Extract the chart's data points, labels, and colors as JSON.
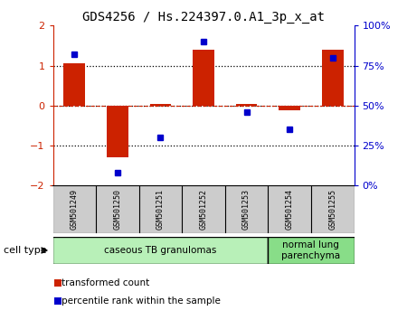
{
  "title": "GDS4256 / Hs.224397.0.A1_3p_x_at",
  "samples": [
    "GSM501249",
    "GSM501250",
    "GSM501251",
    "GSM501252",
    "GSM501253",
    "GSM501254",
    "GSM501255"
  ],
  "transformed_count": [
    1.05,
    -1.3,
    0.05,
    1.4,
    0.05,
    -0.12,
    1.4
  ],
  "percentile_rank": [
    82,
    8,
    30,
    90,
    46,
    35,
    80
  ],
  "bar_color": "#cc2200",
  "dot_color": "#0000cc",
  "ylim_left": [
    -2,
    2
  ],
  "ylim_right": [
    0,
    100
  ],
  "yticks_left": [
    -2,
    -1,
    0,
    1,
    2
  ],
  "yticks_right": [
    0,
    25,
    50,
    75,
    100
  ],
  "ytick_labels_right": [
    "0%",
    "25%",
    "50%",
    "75%",
    "100%"
  ],
  "hlines_dotted": [
    -1,
    0,
    1
  ],
  "cell_type_groups": [
    {
      "label": "caseous TB granulomas",
      "indices": [
        0,
        1,
        2,
        3,
        4
      ],
      "color": "#b8f0b8"
    },
    {
      "label": "normal lung\nparenchyma",
      "indices": [
        5,
        6
      ],
      "color": "#88dd88"
    }
  ],
  "legend_items": [
    {
      "label": "transformed count",
      "color": "#cc2200"
    },
    {
      "label": "percentile rank within the sample",
      "color": "#0000cc"
    }
  ],
  "sample_box_color": "#cccccc",
  "background_color": "#ffffff",
  "bar_width": 0.5
}
